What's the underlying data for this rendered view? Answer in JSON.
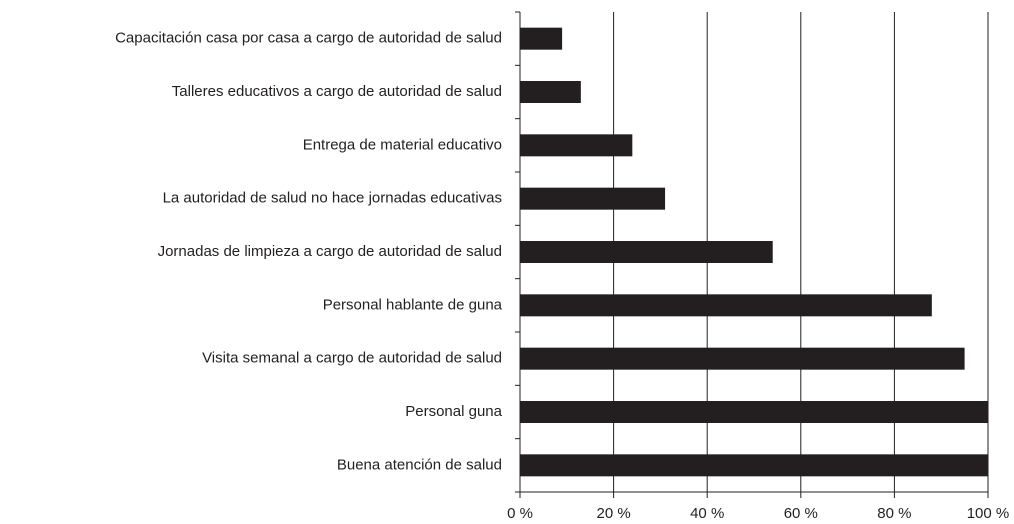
{
  "chart_data": {
    "type": "barh",
    "categories": [
      "Capacitación casa por casa a cargo de autoridad de salud",
      "Talleres educativos a cargo de autoridad de salud",
      "Entrega de material educativo",
      "La autoridad de salud no hace jornadas educativas",
      "Jornadas de limpieza a cargo de autoridad de salud",
      "Personal hablante de guna",
      "Visita semanal a cargo de autoridad de salud",
      "Personal guna",
      "Buena atención de salud"
    ],
    "values": [
      9,
      13,
      24,
      31,
      54,
      88,
      95,
      100,
      100
    ],
    "color": "#231f20",
    "xlim": [
      0,
      100
    ],
    "xticks": [
      {
        "value": 0,
        "label": "0 %"
      },
      {
        "value": 20,
        "label": "20 %"
      },
      {
        "value": 40,
        "label": "40 %"
      },
      {
        "value": 60,
        "label": "60 %"
      },
      {
        "value": 80,
        "label": "80 %"
      },
      {
        "value": 100,
        "label": "100 %"
      }
    ],
    "grid": true
  }
}
